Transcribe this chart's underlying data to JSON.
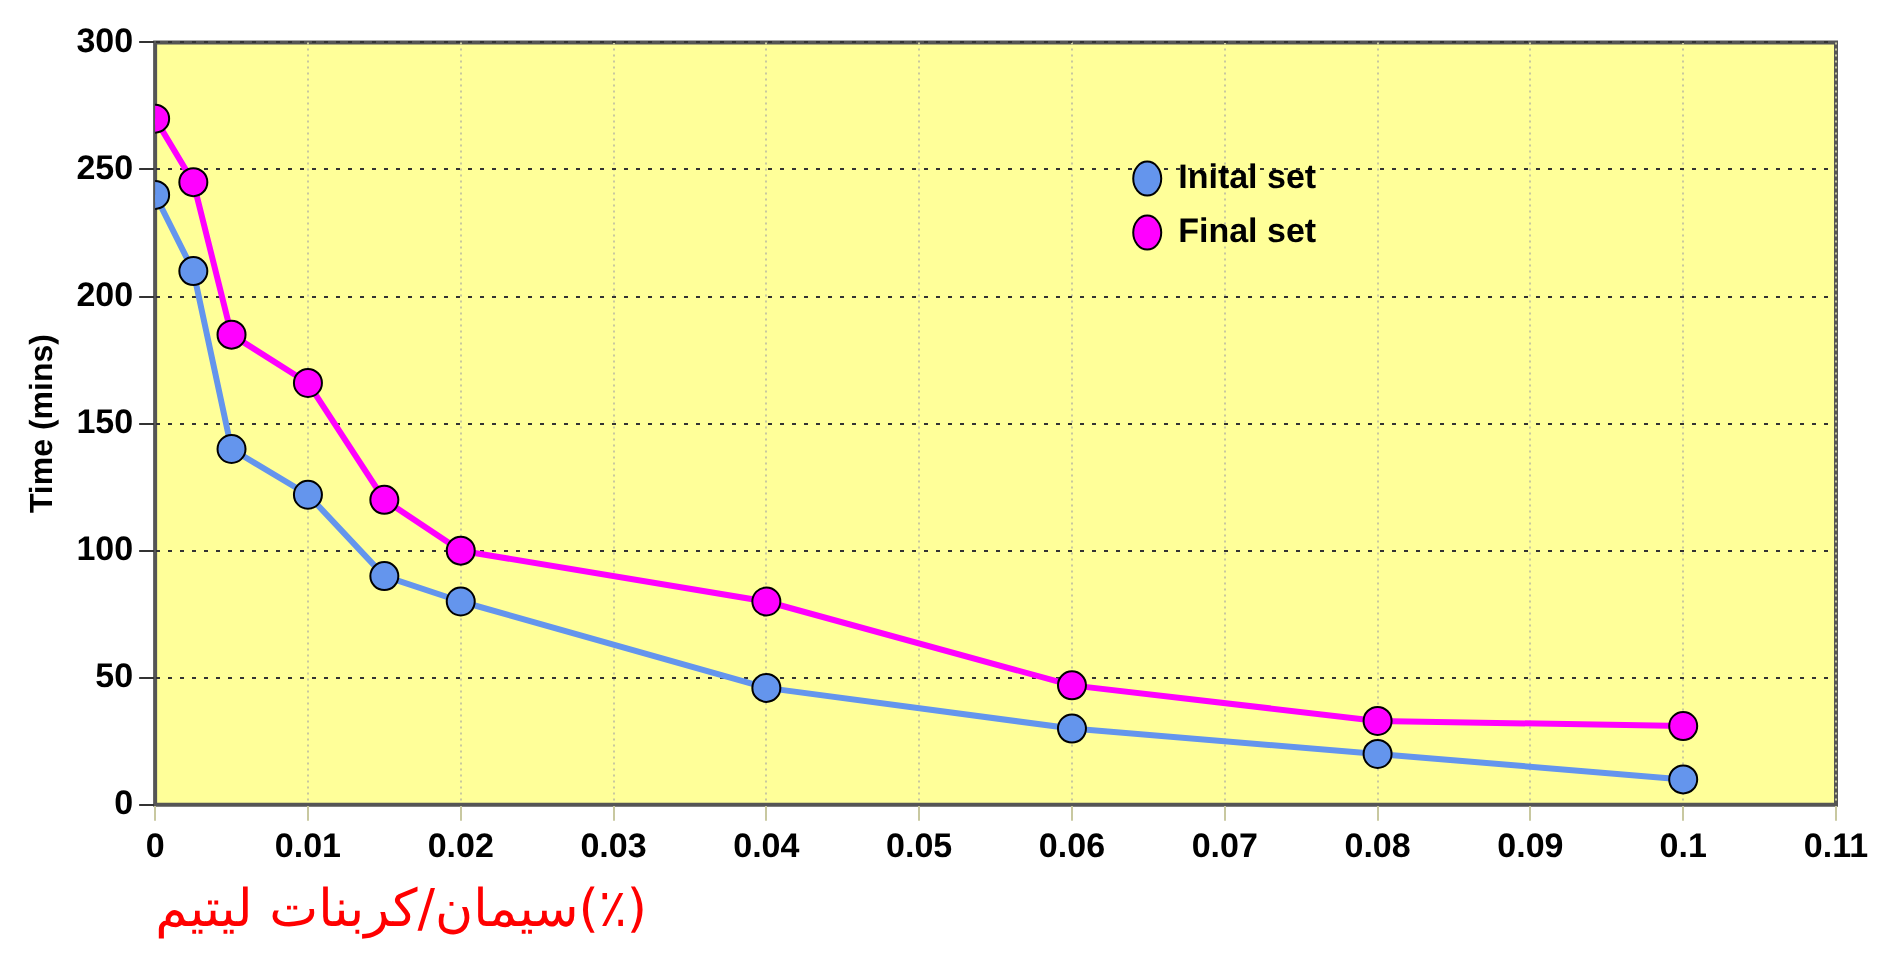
{
  "chart_data": {
    "type": "line",
    "xlabel": "سیمان/کربنات لیتیم(٪)",
    "ylabel": "Time (mins)",
    "x": [
      0,
      0.0025,
      0.005,
      0.01,
      0.015,
      0.02,
      0.04,
      0.06,
      0.08,
      0.1
    ],
    "series": [
      {
        "name": "Inital set",
        "color": "#6495ed",
        "values": [
          240,
          210,
          140,
          122,
          90,
          80,
          46,
          30,
          20,
          10
        ]
      },
      {
        "name": "Final set",
        "color": "#ff00ff",
        "values": [
          270,
          245,
          185,
          166,
          120,
          100,
          80,
          47,
          33,
          31
        ]
      }
    ],
    "xlim": [
      0,
      0.11
    ],
    "xticks": [
      0,
      0.01,
      0.02,
      0.03,
      0.04,
      0.05,
      0.06,
      0.07,
      0.08,
      0.09,
      0.1,
      0.11
    ],
    "ylim": [
      0,
      300
    ],
    "yticks": [
      0,
      50,
      100,
      150,
      200,
      250,
      300
    ],
    "grid": true,
    "legend": "top right",
    "marker": "circle",
    "line_style": "solid"
  }
}
